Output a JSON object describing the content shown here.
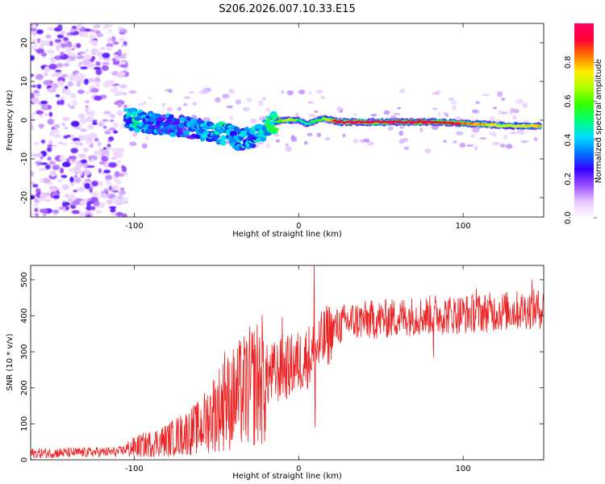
{
  "title": "S206.2026.007.10.33.E15",
  "chart_data": [
    {
      "type": "heatmap",
      "xlabel": "Height of straight line (km)",
      "ylabel": "Frequency (Hz)",
      "xlim": [
        -163,
        149
      ],
      "ylim": [
        -25,
        25
      ],
      "x_ticks": [
        -100,
        0,
        100
      ],
      "y_ticks": [
        -20,
        -10,
        0,
        10,
        20
      ],
      "colorbar": {
        "label": "Normalized spectral amplitude",
        "range": [
          0,
          1
        ],
        "ticks": [
          "0.0",
          "0.2",
          "0.4",
          "0.6",
          "0.8"
        ],
        "colors": [
          "#ffffff",
          "#e6c8ff",
          "#9b4dff",
          "#3300ff",
          "#0077ff",
          "#00ddff",
          "#00ff77",
          "#33ff00",
          "#aaff00",
          "#ffee00",
          "#ff7700",
          "#ff0033",
          "#ff0066"
        ]
      },
      "ridge": [
        {
          "x": -105,
          "f": 0.5,
          "a": 0.35
        },
        {
          "x": -95,
          "f": -0.5,
          "a": 0.4
        },
        {
          "x": -85,
          "f": -1.0,
          "a": 0.3
        },
        {
          "x": -75,
          "f": -1.5,
          "a": 0.3
        },
        {
          "x": -65,
          "f": -2.0,
          "a": 0.3
        },
        {
          "x": -55,
          "f": -2.5,
          "a": 0.35
        },
        {
          "x": -45,
          "f": -3.5,
          "a": 0.4
        },
        {
          "x": -35,
          "f": -5.0,
          "a": 0.35
        },
        {
          "x": -25,
          "f": -4.0,
          "a": 0.35
        },
        {
          "x": -18,
          "f": -1.0,
          "a": 0.45
        },
        {
          "x": -10,
          "f": 0.0,
          "a": 0.6
        },
        {
          "x": -5,
          "f": 0.0,
          "a": 0.8
        },
        {
          "x": 0,
          "f": 0.0,
          "a": 0.5
        },
        {
          "x": 5,
          "f": -1.0,
          "a": 0.45
        },
        {
          "x": 15,
          "f": 0.5,
          "a": 0.6
        },
        {
          "x": 25,
          "f": -0.5,
          "a": 1.0
        },
        {
          "x": 50,
          "f": -0.5,
          "a": 1.0
        },
        {
          "x": 85,
          "f": -0.5,
          "a": 0.95
        },
        {
          "x": 110,
          "f": -1.0,
          "a": 0.8
        },
        {
          "x": 130,
          "f": -1.5,
          "a": 0.7
        },
        {
          "x": 147,
          "f": -1.5,
          "a": 0.8
        }
      ]
    },
    {
      "type": "line",
      "xlabel": "Height of straight line (km)",
      "ylabel": "SNR (10 * v/v)",
      "xlim": [
        -163,
        149
      ],
      "ylim": [
        0,
        540
      ],
      "x_ticks": [
        -100,
        0,
        100
      ],
      "y_ticks": [
        0,
        100,
        200,
        300,
        400,
        500
      ],
      "color": "#ee2222",
      "baseline": [
        {
          "x": -163,
          "snr": 18
        },
        {
          "x": -110,
          "snr": 22
        },
        {
          "x": -100,
          "snr": 35
        },
        {
          "x": -80,
          "snr": 55
        },
        {
          "x": -60,
          "snr": 90
        },
        {
          "x": -50,
          "snr": 140
        },
        {
          "x": -40,
          "snr": 170
        },
        {
          "x": -30,
          "snr": 200
        },
        {
          "x": -20,
          "snr": 230
        },
        {
          "x": -10,
          "snr": 250
        },
        {
          "x": 0,
          "snr": 270
        },
        {
          "x": 10,
          "snr": 300
        },
        {
          "x": 20,
          "snr": 360
        },
        {
          "x": 30,
          "snr": 385
        },
        {
          "x": 50,
          "snr": 390
        },
        {
          "x": 70,
          "snr": 400
        },
        {
          "x": 100,
          "snr": 405
        },
        {
          "x": 149,
          "snr": 420
        }
      ],
      "spikes": [
        {
          "x": 9.5,
          "snr": 540
        },
        {
          "x": 10,
          "snr": 90
        },
        {
          "x": -10,
          "snr": 395
        },
        {
          "x": -45,
          "snr": 300
        },
        {
          "x": 83,
          "snr": 455
        },
        {
          "x": 108,
          "snr": 475
        },
        {
          "x": 142,
          "snr": 500
        },
        {
          "x": 82,
          "snr": 285
        }
      ]
    }
  ]
}
